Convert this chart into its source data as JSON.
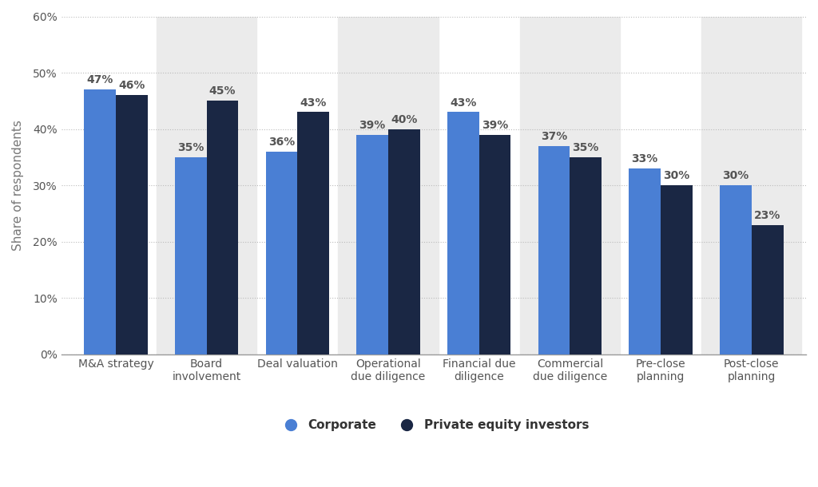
{
  "categories": [
    "M&A strategy",
    "Board\ninvolvement",
    "Deal valuation",
    "Operational\ndue diligence",
    "Financial due\ndiligence",
    "Commercial\ndue diligence",
    "Pre-close\nplanning",
    "Post-close\nplanning"
  ],
  "corporate": [
    47,
    35,
    36,
    39,
    43,
    37,
    33,
    30
  ],
  "private_equity": [
    46,
    45,
    43,
    40,
    39,
    35,
    30,
    23
  ],
  "corporate_color": "#4a7fd4",
  "pe_color": "#1a2744",
  "ylabel": "Share of respondents",
  "ylim": [
    0,
    60
  ],
  "yticks": [
    0,
    10,
    20,
    30,
    40,
    50,
    60
  ],
  "ytick_labels": [
    "0%",
    "10%",
    "20%",
    "30%",
    "40%",
    "50%",
    "60%"
  ],
  "legend_corporate": "Corporate",
  "legend_pe": "Private equity investors",
  "bar_width": 0.35,
  "background_color": "#ffffff",
  "plot_bg_color": "#ffffff",
  "alt_bg_color": "#ebebeb",
  "grid_color": "#bbbbbb",
  "label_fontsize": 10,
  "axis_fontsize": 11,
  "tick_fontsize": 10,
  "label_color": "#555555"
}
